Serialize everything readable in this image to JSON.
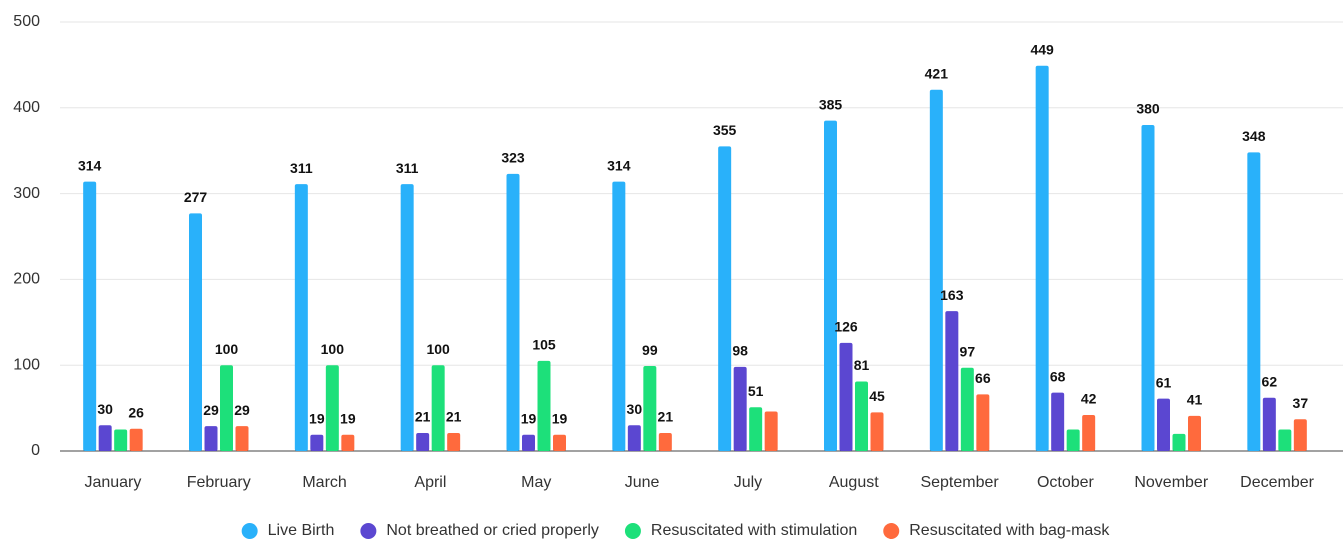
{
  "chart_data": {
    "type": "bar",
    "categories": [
      "January",
      "February",
      "March",
      "April",
      "May",
      "June",
      "July",
      "August",
      "September",
      "October",
      "November",
      "December"
    ],
    "series": [
      {
        "name": "Live Birth",
        "color": "#29b1fa",
        "values": [
          314,
          277,
          311,
          311,
          323,
          314,
          355,
          385,
          421,
          449,
          380,
          348
        ],
        "value_labels": [
          "314",
          "277",
          "311",
          "311",
          "323",
          "314",
          "355",
          "385",
          "421",
          "449",
          "380",
          "348"
        ]
      },
      {
        "name": "Not breathed or cried properly",
        "color": "#5b47d1",
        "values": [
          30,
          29,
          19,
          21,
          19,
          30,
          98,
          126,
          163,
          68,
          61,
          62
        ],
        "value_labels": [
          "30",
          "29",
          "19",
          "21",
          "19",
          "30",
          "98",
          "126",
          "163",
          "68",
          "61",
          "62"
        ]
      },
      {
        "name": "Resuscitated with stimulation",
        "color": "#1de07a",
        "values": [
          25,
          100,
          100,
          100,
          105,
          99,
          51,
          81,
          97,
          25,
          20,
          25
        ],
        "value_labels": [
          null,
          "100",
          "100",
          "100",
          "105",
          "99",
          "51",
          "81",
          "97",
          null,
          null,
          null
        ]
      },
      {
        "name": "Resuscitated with bag-mask",
        "color": "#ff6a3d",
        "values": [
          26,
          29,
          19,
          21,
          19,
          21,
          46,
          45,
          66,
          42,
          41,
          37
        ],
        "value_labels": [
          "26",
          "29",
          "19",
          "21",
          "19",
          "21",
          null,
          "45",
          "66",
          "42",
          "41",
          "37"
        ]
      }
    ],
    "ylim": [
      0,
      500
    ],
    "yticks": [
      0,
      100,
      200,
      300,
      400,
      500
    ],
    "grid": true,
    "legend": "bottom"
  }
}
